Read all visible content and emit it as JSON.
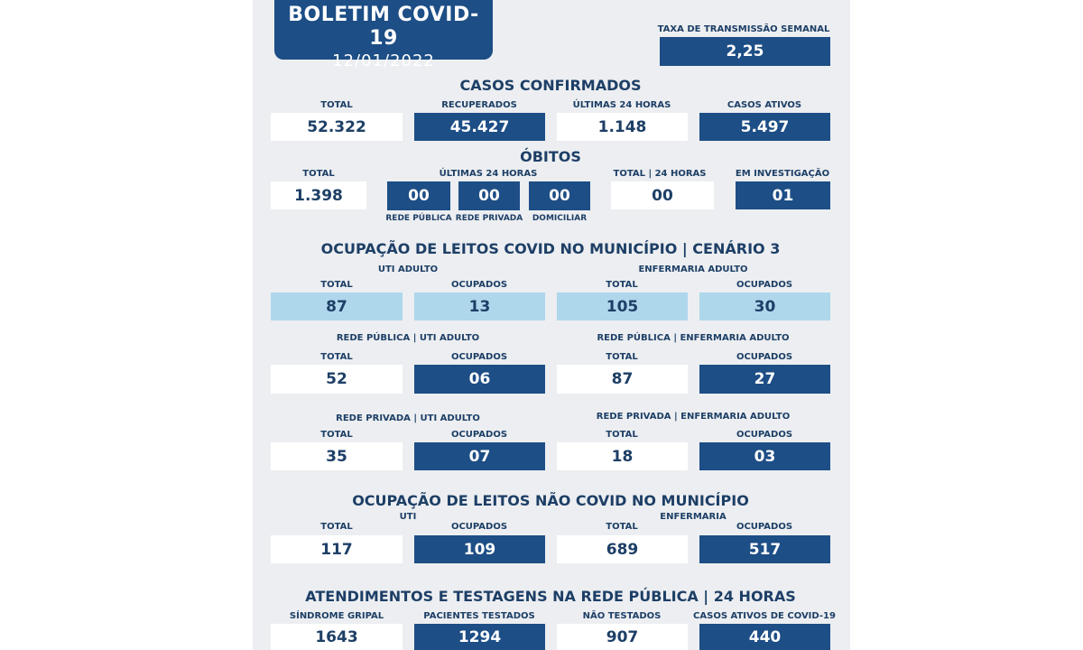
{
  "header": {
    "title": "BOLETIM COVID-19",
    "date": "12/01/2022"
  },
  "transmission": {
    "label": "TAXA DE TRANSMISSÃO SEMANAL",
    "value": "2,25"
  },
  "cases": {
    "title": "CASOS CONFIRMADOS",
    "items": [
      {
        "label": "TOTAL",
        "value": "52.322"
      },
      {
        "label": "RECUPERADOS",
        "value": "45.427"
      },
      {
        "label": "ÚLTIMAS 24 HORAS",
        "value": "1.148"
      },
      {
        "label": "CASOS ATIVOS",
        "value": "5.497"
      }
    ]
  },
  "deaths": {
    "title": "ÓBITOS",
    "total_label": "TOTAL",
    "total_value": "1.398",
    "last24_label": "ÚLTIMAS 24 HORAS",
    "last24": [
      {
        "label": "REDE PÚBLICA",
        "value": "00"
      },
      {
        "label": "REDE PRIVADA",
        "value": "00"
      },
      {
        "label": "DOMICILIAR",
        "value": "00"
      }
    ],
    "total24_label": "TOTAL | 24 HORAS",
    "total24_value": "00",
    "investigation_label": "EM INVESTIGAÇÃO",
    "investigation_value": "01"
  },
  "covid_beds": {
    "title": "OCUPAÇÃO DE LEITOS COVID NO MUNICÍPIO | CENÁRIO  3",
    "uti_label": "UTI ADULTO",
    "enf_label": "ENFERMARIA ADULTO",
    "total_label": "TOTAL",
    "occupied_label": "OCUPADOS",
    "uti_total": "87",
    "uti_occupied": "13",
    "enf_total": "105",
    "enf_occupied": "30",
    "public_uti_label": "REDE PÚBLICA | UTI ADULTO",
    "public_enf_label": "REDE PÚBLICA | ENFERMARIA ADULTO",
    "public_uti_total": "52",
    "public_uti_occupied": "06",
    "public_enf_total": "87",
    "public_enf_occupied": "27",
    "private_uti_label": "REDE PRIVADA | UTI ADULTO",
    "private_enf_label": "REDE PRIVADA | ENFERMARIA ADULTO",
    "private_uti_total": "35",
    "private_uti_occupied": "07",
    "private_enf_total": "18",
    "private_enf_occupied": "03"
  },
  "noncovid_beds": {
    "title": "OCUPAÇÃO DE LEITOS NÃO COVID NO MUNICÍPIO",
    "uti_label": "UTI",
    "enf_label": "ENFERMARIA",
    "total_label": "TOTAL",
    "occupied_label": "OCUPADOS",
    "uti_total": "117",
    "uti_occupied": "109",
    "enf_total": "689",
    "enf_occupied": "517"
  },
  "public_care": {
    "title": "ATENDIMENTOS E TESTAGENS NA REDE PÚBLICA | 24 HORAS",
    "items": [
      {
        "label": "SÍNDROME GRIPAL",
        "value": "1643"
      },
      {
        "label": "PACIENTES TESTADOS",
        "value": "1294"
      },
      {
        "label": "NÃO TESTADOS",
        "value": "907"
      },
      {
        "label": "CASOS ATIVOS DE COVID-19",
        "value": "440"
      }
    ]
  },
  "colors": {
    "dark": "#1d4e86",
    "light": "#aed7ec",
    "text": "#1d3f66",
    "panel": "#eceef1"
  }
}
